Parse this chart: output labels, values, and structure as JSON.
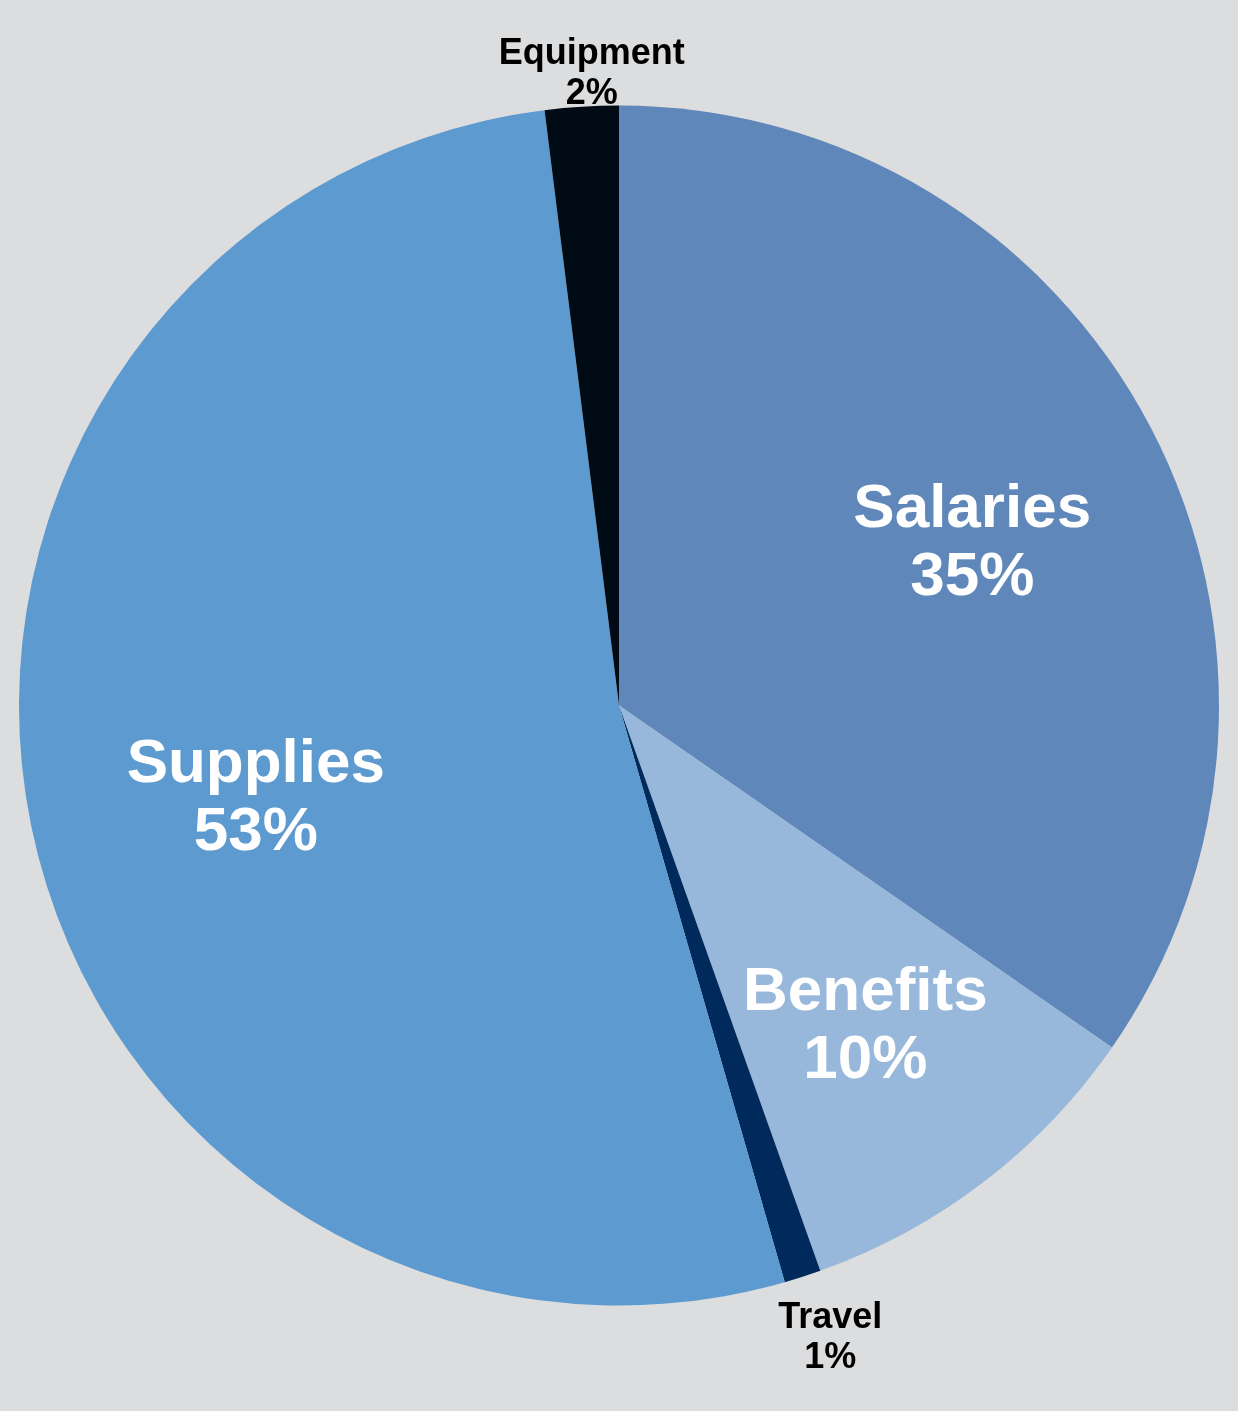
{
  "chart_data": {
    "type": "pie",
    "categories": [
      "Salaries",
      "Benefits",
      "Travel",
      "Supplies",
      "Equipment"
    ],
    "values": [
      35,
      10,
      1,
      53,
      2
    ],
    "value_labels": [
      "35%",
      "10%",
      "1%",
      "53%",
      "2%"
    ],
    "colors": [
      "#5f87b9",
      "#97b8da",
      "#002a5c",
      "#5c9ad0",
      "#000b16"
    ]
  }
}
